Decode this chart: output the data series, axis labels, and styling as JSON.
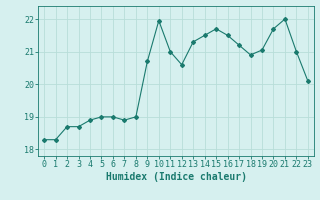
{
  "x": [
    0,
    1,
    2,
    3,
    4,
    5,
    6,
    7,
    8,
    9,
    10,
    11,
    12,
    13,
    14,
    15,
    16,
    17,
    18,
    19,
    20,
    21,
    22,
    23
  ],
  "y": [
    18.3,
    18.3,
    18.7,
    18.7,
    18.9,
    19.0,
    19.0,
    18.9,
    19.0,
    20.7,
    21.95,
    21.0,
    20.6,
    21.3,
    21.5,
    21.7,
    21.5,
    21.2,
    20.9,
    21.05,
    21.7,
    22.0,
    21.0,
    20.1
  ],
  "line_color": "#1a7a6e",
  "bg_color": "#d6f0ef",
  "grid_color": "#b8ddd9",
  "xlabel": "Humidex (Indice chaleur)",
  "ylim": [
    17.8,
    22.4
  ],
  "xlim": [
    -0.5,
    23.5
  ],
  "yticks": [
    18,
    19,
    20,
    21,
    22
  ],
  "xticks": [
    0,
    1,
    2,
    3,
    4,
    5,
    6,
    7,
    8,
    9,
    10,
    11,
    12,
    13,
    14,
    15,
    16,
    17,
    18,
    19,
    20,
    21,
    22,
    23
  ],
  "tick_color": "#1a7a6e",
  "label_fontsize": 7,
  "tick_fontsize": 6
}
